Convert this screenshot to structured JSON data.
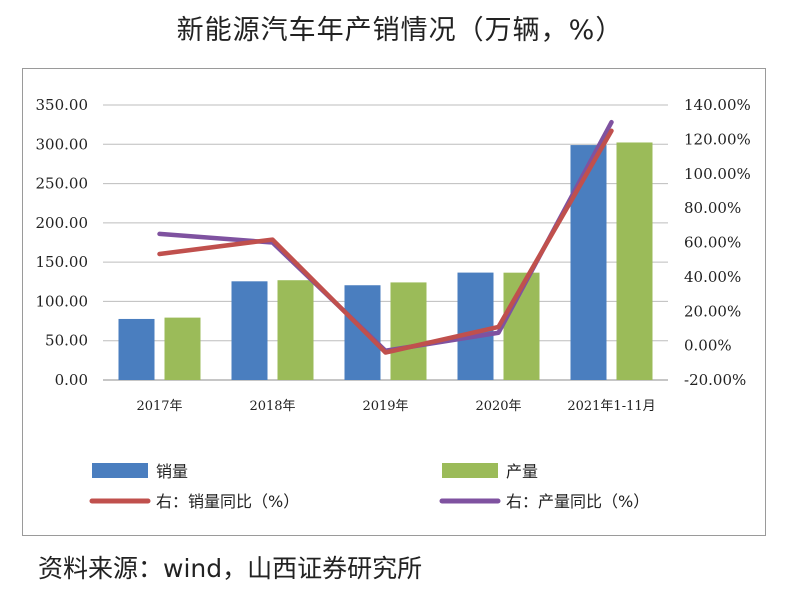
{
  "title": "新能源汽车年产销情况（万辆，%）",
  "source": "资料来源：wind，山西证券研究所",
  "chart_data": {
    "type": "bar",
    "categories": [
      "2017年",
      "2018年",
      "2019年",
      "2020年",
      "2021年1-11月"
    ],
    "series": [
      {
        "name": "销量",
        "type": "bar",
        "axis": "left",
        "color": "#4a7ebf",
        "values": [
          77.7,
          125.6,
          120.6,
          136.7,
          299.0
        ]
      },
      {
        "name": "产量",
        "type": "bar",
        "axis": "left",
        "color": "#9bbb59",
        "values": [
          79.4,
          127.0,
          124.2,
          136.6,
          302.3
        ]
      },
      {
        "name": "右：销量同比（%）",
        "type": "line",
        "axis": "right",
        "color": "#c0504d",
        "values": [
          53.3,
          61.7,
          -4.0,
          10.9,
          125.0
        ]
      },
      {
        "name": "右：产量同比（%）",
        "type": "line",
        "axis": "right",
        "color": "#7f52a0",
        "values": [
          65.0,
          60.0,
          -3.0,
          7.5,
          130.0
        ]
      }
    ],
    "left_axis": {
      "min": 0,
      "max": 350,
      "step": 50,
      "tick_labels": [
        "0.00",
        "50.00",
        "100.00",
        "150.00",
        "200.00",
        "250.00",
        "300.00",
        "350.00"
      ]
    },
    "right_axis": {
      "min": -20,
      "max": 140,
      "step": 20,
      "tick_labels": [
        "-20.00%",
        "0.00%",
        "20.00%",
        "40.00%",
        "60.00%",
        "80.00%",
        "100.00%",
        "120.00%",
        "140.00%"
      ]
    },
    "grid": true,
    "legend_position": "bottom"
  }
}
